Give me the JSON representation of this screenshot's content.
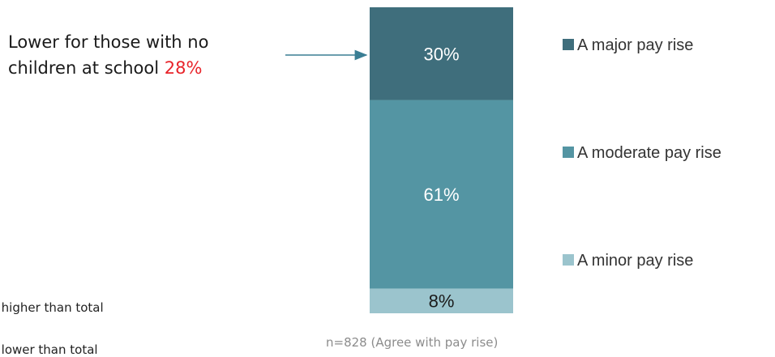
{
  "chart_data": {
    "type": "bar",
    "stacked": true,
    "categories": [
      ""
    ],
    "series": [
      {
        "name": "A minor pay rise",
        "values": [
          8
        ],
        "color": "#9bc4cd",
        "label": "8%"
      },
      {
        "name": "A moderate pay rise",
        "values": [
          61
        ],
        "color": "#5495a3",
        "label": "61%"
      },
      {
        "name": "A major pay rise",
        "values": [
          30
        ],
        "color": "#3f6e7c",
        "label": "30%"
      }
    ],
    "legend": {
      "placement": "right",
      "order": [
        "A major pay rise",
        "A moderate pay rise",
        "A minor pay rise"
      ]
    },
    "ylim": [
      0,
      100
    ],
    "grid": false
  },
  "callout": {
    "text": "Lower for those with no children at school",
    "value": "28%",
    "value_color": "#e8242a"
  },
  "significance": {
    "higher": "y higher than total",
    "lower": "y lower than total"
  },
  "footnote": "n=828 (Agree with pay rise)"
}
